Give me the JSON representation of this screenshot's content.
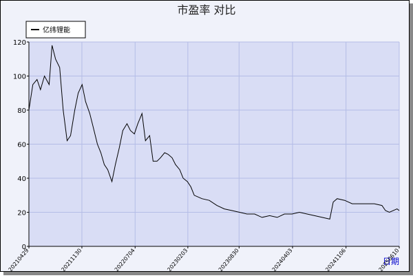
{
  "chart_data": {
    "type": "line",
    "title": "市盈率  对比",
    "x_label": "日期",
    "x": [
      "20210429",
      "20210515",
      "20210601",
      "20210615",
      "20210701",
      "20210720",
      "20210801",
      "20210815",
      "20210901",
      "20210915",
      "20211001",
      "20211015",
      "20211101",
      "20211115",
      "20211201",
      "20211215",
      "20220101",
      "20220115",
      "20220201",
      "20220215",
      "20220301",
      "20220315",
      "20220401",
      "20220415",
      "20220501",
      "20220515",
      "20220601",
      "20220615",
      "20220701",
      "20220715",
      "20220801",
      "20220815",
      "20220901",
      "20220915",
      "20221001",
      "20221015",
      "20221101",
      "20221115",
      "20221201",
      "20221215",
      "20230101",
      "20230115",
      "20230201",
      "20230215",
      "20230301",
      "20230401",
      "20230501",
      "20230601",
      "20230701",
      "20230801",
      "20230901",
      "20231001",
      "20231101",
      "20231201",
      "20240101",
      "20240201",
      "20240301",
      "20240401",
      "20240501",
      "20240601",
      "20240701",
      "20240801",
      "20240901",
      "20240915",
      "20241001",
      "20241101",
      "20241201",
      "20250101",
      "20250201",
      "20250301",
      "20250401",
      "20250415",
      "20250501",
      "20250601",
      "20250610"
    ],
    "series": [
      {
        "name": "亿纬锂能",
        "color": "#000000",
        "values": [
          80,
          95,
          98,
          92,
          100,
          95,
          118,
          110,
          105,
          80,
          62,
          65,
          80,
          90,
          95,
          85,
          78,
          70,
          60,
          55,
          48,
          45,
          38,
          48,
          58,
          68,
          72,
          68,
          66,
          72,
          78,
          62,
          65,
          50,
          50,
          52,
          55,
          54,
          52,
          48,
          45,
          40,
          38,
          35,
          30,
          28,
          27,
          24,
          22,
          21,
          20,
          19,
          19,
          17,
          18,
          17,
          19,
          19,
          20,
          19,
          18,
          17,
          16,
          26,
          28,
          27,
          25,
          25,
          25,
          25,
          24,
          21,
          20,
          22,
          21
        ]
      }
    ],
    "xlim": [
      "20210429",
      "20250610"
    ],
    "xticks": [
      "20210429",
      "20211130",
      "20220704",
      "20230203",
      "20230830",
      "20240403",
      "20241106",
      "20250610"
    ],
    "ylim": [
      0,
      120
    ],
    "yticks": [
      0,
      20,
      40,
      60,
      80,
      100,
      120
    ],
    "grid": true
  }
}
